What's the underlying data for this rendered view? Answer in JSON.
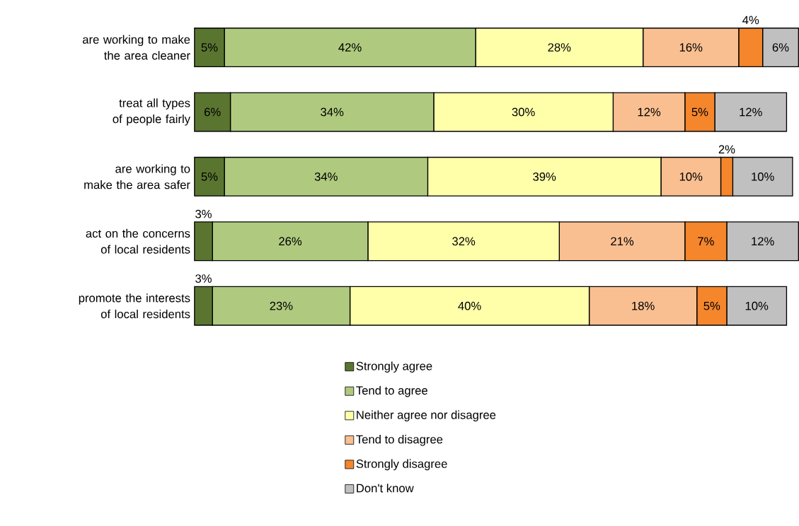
{
  "chart_data": {
    "type": "bar",
    "orientation": "horizontal",
    "stacked": true,
    "legend": "bottom",
    "categories": [
      "are working to make the area cleaner",
      "treat all types of people fairly",
      "are working to make the area safer",
      "act on the concerns of local residents",
      "promote the interests of local residents"
    ],
    "series": [
      {
        "name": "Strongly agree",
        "color": "#5a7530",
        "values": [
          5,
          6,
          5,
          3,
          3
        ],
        "value_labels": [
          "5%",
          "6%",
          "5%",
          "3%",
          "3%"
        ]
      },
      {
        "name": "Tend to agree",
        "color": "#afca7f",
        "values": [
          42,
          34,
          34,
          26,
          23
        ],
        "value_labels": [
          "42%",
          "34%",
          "34%",
          "26%",
          "23%"
        ]
      },
      {
        "name": "Neither agree nor disagree",
        "color": "#ffffaa",
        "values": [
          28,
          30,
          39,
          32,
          40
        ],
        "value_labels": [
          "28%",
          "30%",
          "39%",
          "32%",
          "40%"
        ]
      },
      {
        "name": "Tend to disagree",
        "color": "#f9bf91",
        "values": [
          16,
          12,
          10,
          21,
          18
        ],
        "value_labels": [
          "16%",
          "12%",
          "10%",
          "21%",
          "18%"
        ]
      },
      {
        "name": "Strongly disagree",
        "color": "#f5862c",
        "values": [
          4,
          5,
          2,
          7,
          5
        ],
        "value_labels": [
          "4%",
          "5%",
          "2%",
          "7%",
          "5%"
        ]
      },
      {
        "name": "Don't know",
        "color": "#c0c0c0",
        "values": [
          6,
          12,
          10,
          12,
          10
        ],
        "value_labels": [
          "6%",
          "12%",
          "10%",
          "12%",
          "10%"
        ]
      }
    ]
  }
}
